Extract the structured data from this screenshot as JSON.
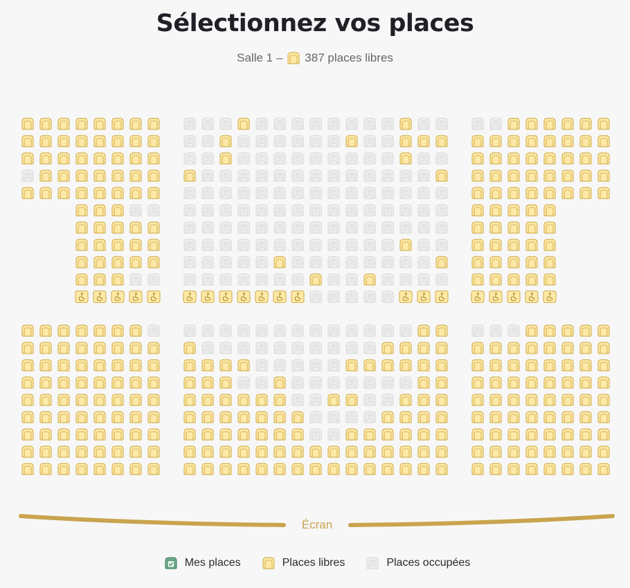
{
  "header": {
    "title": "Sélectionnez vos places",
    "room": "Salle 1 –",
    "free_count_text": "387 places libres",
    "free_icon": "seat-free-icon"
  },
  "legend": {
    "mine": "Mes places",
    "free": "Places libres",
    "occupied": "Places occupées"
  },
  "screen": {
    "label": "Écran"
  },
  "colors": {
    "free_fill": "#fde9a8",
    "free_stroke": "#d6b457",
    "occ_fill": "#efefef",
    "occ_stroke": "#dadada",
    "mine_fill": "#6faa8a",
    "mine_stroke": "#4e8a6a",
    "screen": "#c9a44e"
  },
  "seat_codes": {
    "F": "free",
    "O": "occupied",
    "W": "wheelchair-free",
    "-": "none"
  },
  "sections": {
    "top": {
      "left": [
        "FFFFFFFF",
        "FFFFFFFF",
        "FFFFFFFF",
        "OFFFFFFF",
        "FFFFFFFF",
        "---FFFOO",
        "---FFFFF",
        "---FFFFF",
        "---FFFFF",
        "---FFFOO",
        "---WWWWW"
      ],
      "middle": [
        "OOOFOOOOOOOOFOO",
        "OOFOOOOOOFOOFFF",
        "OOFOOOOOOOOOFOO",
        "FOOOOOOOOOOOOOF",
        "OOOOOOOOOOOOOOO",
        "OOOOOOOOOOOOOOO",
        "OOOOOOOOOOOOOOO",
        "OOOOOOOOOOOOFOO",
        "OOOOOFOOOOOOOOF",
        "OOOOOOOFOOFOOOO",
        "WWWWWWWOOOOOWWW"
      ],
      "right": [
        "OOFFFFFF",
        "FFFFFFFF",
        "FFFFFFFF",
        "FFFFFFFF",
        "FFFFFFFF",
        "FFFFF---",
        "FFFFF---",
        "FFFFF---",
        "FFFFF---",
        "FFFFF---",
        "WWWWW---"
      ]
    },
    "bottom": {
      "left": [
        "FFFFFFFO",
        "FFFFFFFF",
        "FFFFFFFF",
        "FFFFFFFF",
        "FFFFFFFF",
        "FFFFFFFF",
        "FFFFFFFF",
        "FFFFFFFF",
        "FFFFFFFF"
      ],
      "middle": [
        "OOOOOOOOOOOOOFF",
        "FOOOOOOOOOOFFFF",
        "FFFFOOOOOFFFFFF",
        "FFFOOFOOOOOOOFF",
        "FFFFFFOOFFOOFFF",
        "FFFFFFFOOOOFFFF",
        "FFFFFFFOOFFFFFF",
        "FFFFFFFFFFFFFFF",
        "FFFFFFFFFFFFFFF"
      ],
      "right": [
        "OOOFFFFF",
        "FFFFFFFF",
        "FFFFFFFF",
        "FFFFFFFF",
        "FFFFFFFF",
        "FFFFFFFF",
        "FFFFFFFF",
        "FFFFFFFF",
        "FFFFFFFF"
      ]
    }
  }
}
